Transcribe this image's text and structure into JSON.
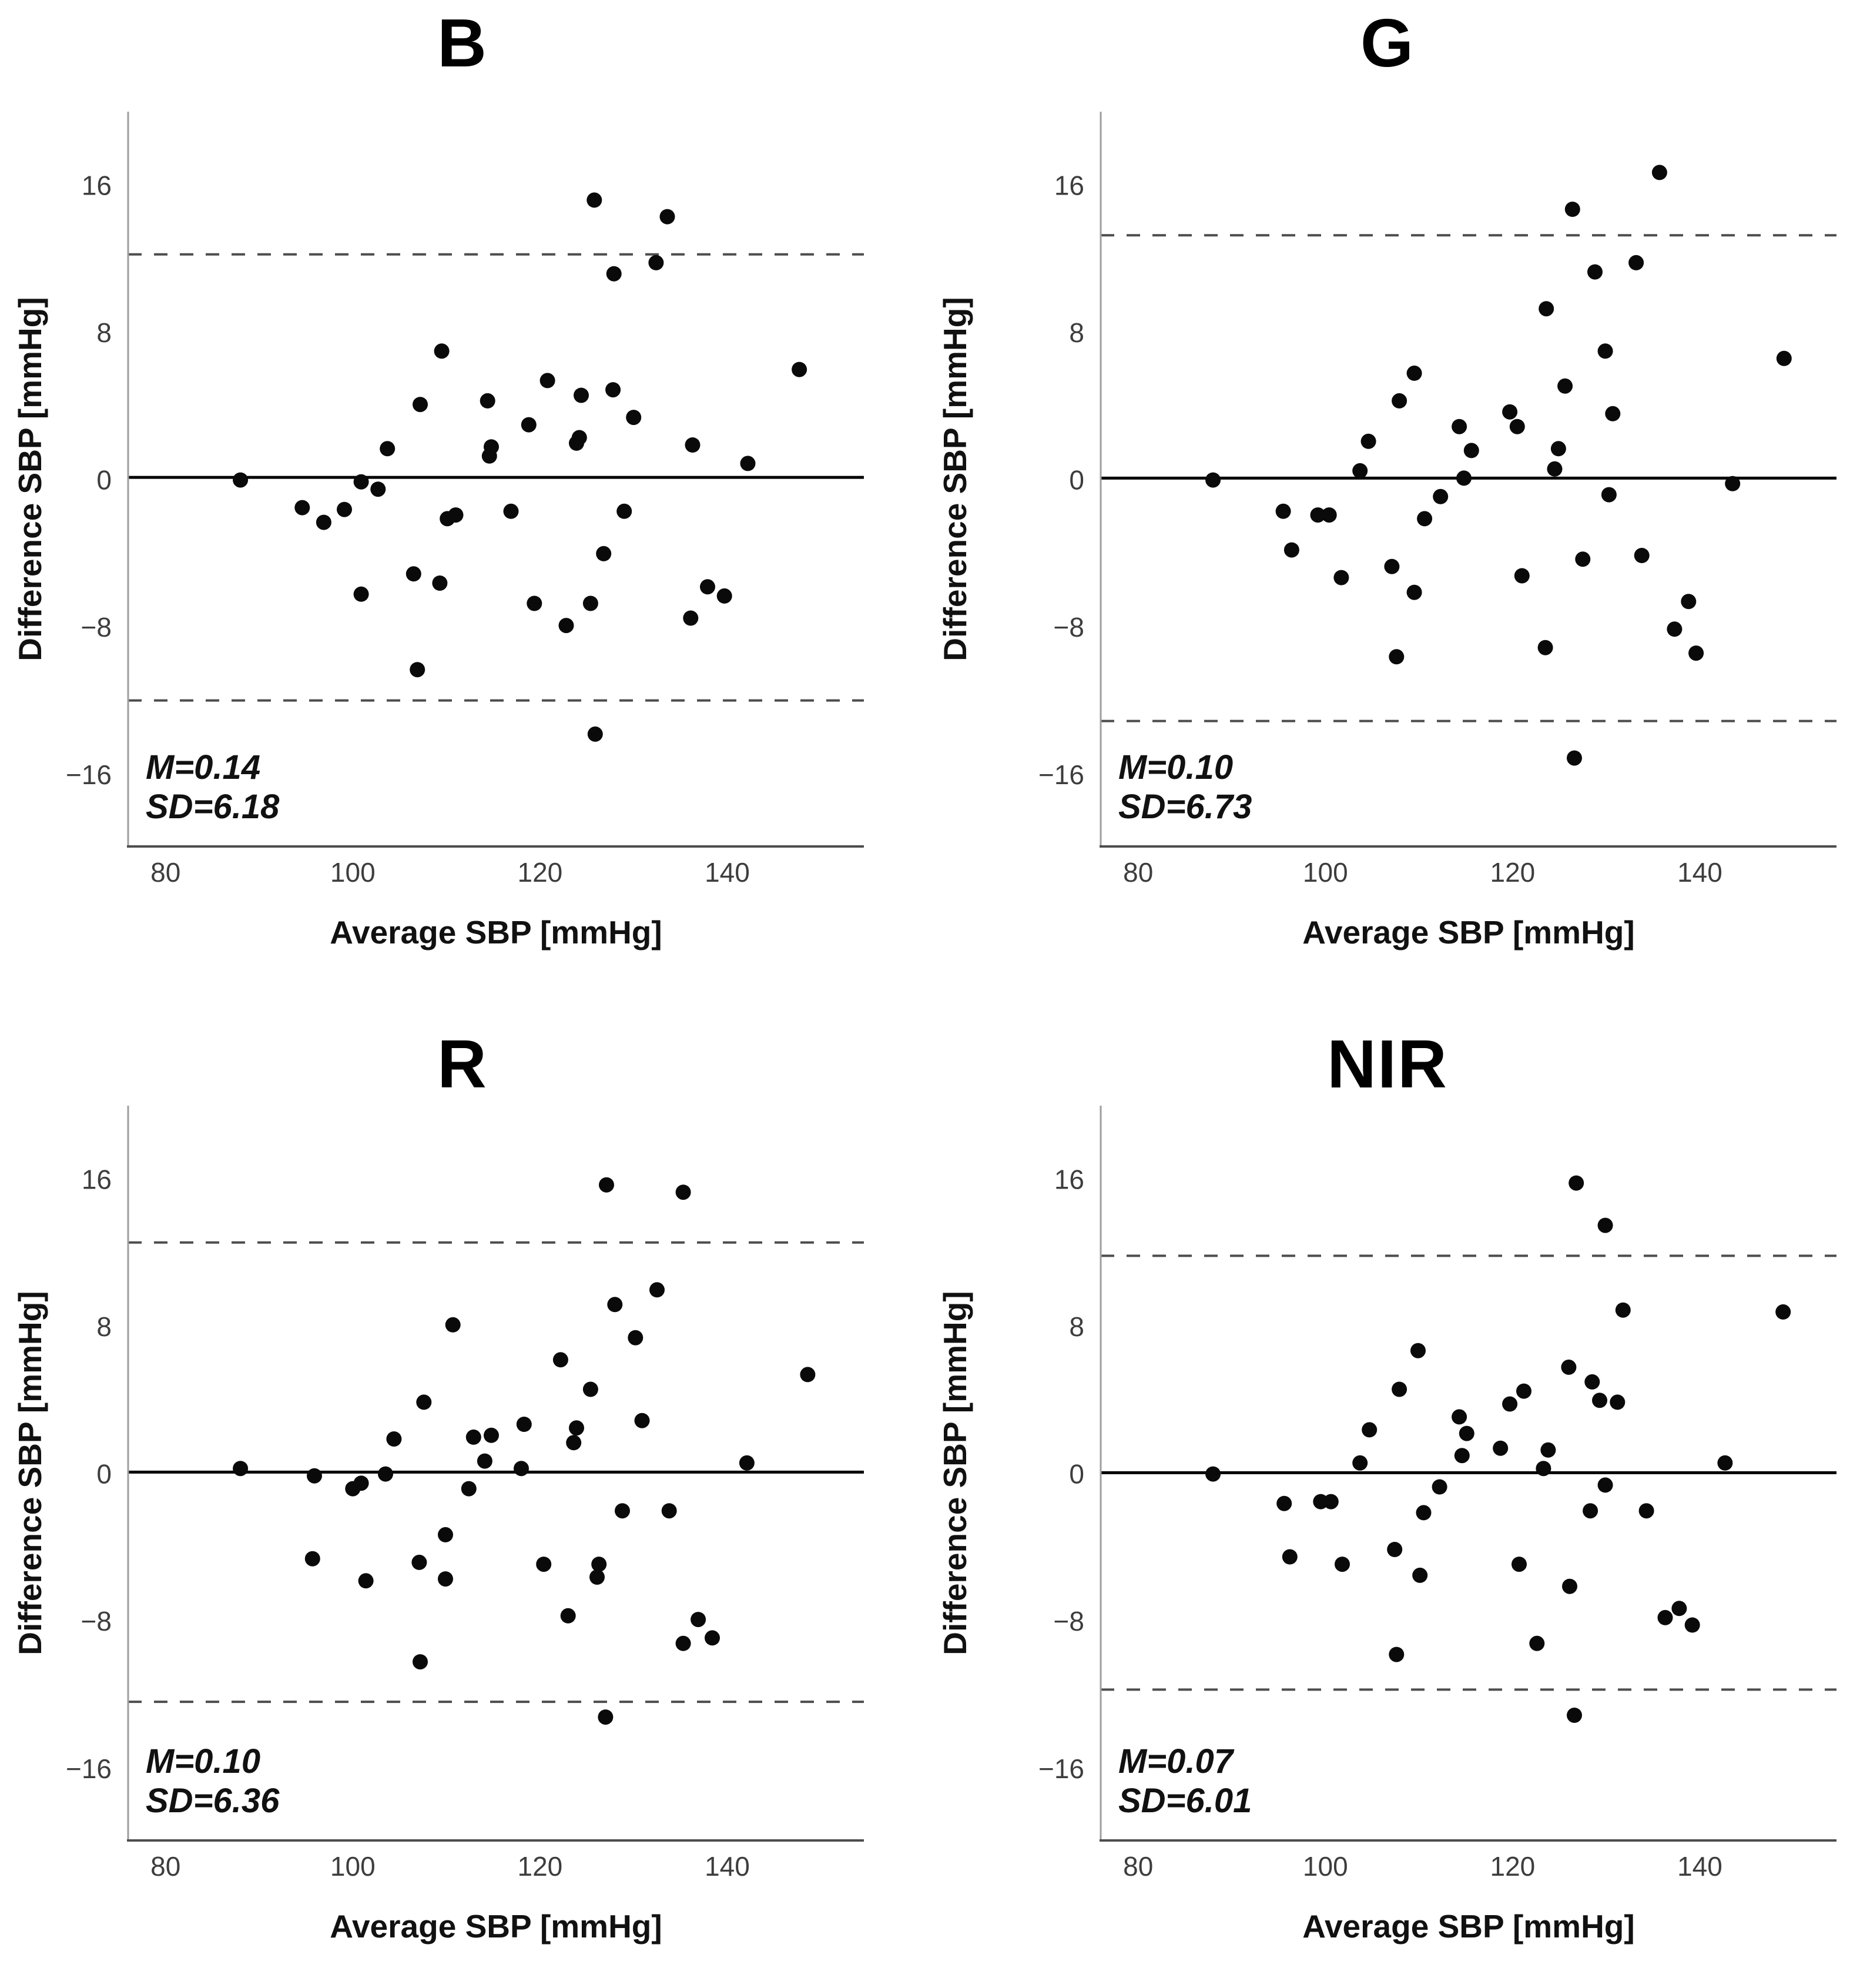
{
  "figure": {
    "background": "#ffffff",
    "point_color": "#0a0a0a",
    "mean_line_color": "#000000",
    "loa_line_color": "#4d4d4d",
    "spine_color": "#9e9e9e",
    "axis_color": "#4d4d4d",
    "tick_label_color": "#3d3d3d",
    "text_color": "#111111"
  },
  "shared": {
    "xlabel": "Average SBP [mmHg]",
    "ylabel": "Difference SBP [mmHg]",
    "x_ticks": [
      80,
      100,
      120,
      140
    ],
    "y_ticks": [
      16,
      8,
      0,
      -8,
      -16
    ],
    "xlim": [
      76.0,
      154.6
    ],
    "ylim": [
      -19.9,
      20.0
    ],
    "grid": "off",
    "legend": "none"
  },
  "chart_data": [
    {
      "type": "scatter",
      "title": "B",
      "mean": 0.14,
      "sd": 6.18,
      "upper_loa": 12.25,
      "lower_loa": -11.97,
      "annotation": {
        "m": "M=0.14",
        "sd": "SD=6.18"
      },
      "points": [
        [
          88.0,
          0.0
        ],
        [
          94.6,
          -1.5
        ],
        [
          96.9,
          -2.3
        ],
        [
          99.1,
          -1.6
        ],
        [
          100.9,
          -0.1
        ],
        [
          102.7,
          -0.5
        ],
        [
          100.9,
          -6.2
        ],
        [
          103.7,
          1.7
        ],
        [
          106.5,
          -5.1
        ],
        [
          106.9,
          -10.3
        ],
        [
          107.2,
          4.1
        ],
        [
          109.3,
          -5.6
        ],
        [
          109.5,
          7.0
        ],
        [
          110.1,
          -2.1
        ],
        [
          111.0,
          -1.9
        ],
        [
          114.4,
          4.3
        ],
        [
          114.6,
          1.3
        ],
        [
          114.8,
          1.8
        ],
        [
          116.9,
          -1.7
        ],
        [
          118.8,
          3.0
        ],
        [
          119.4,
          -6.7
        ],
        [
          120.8,
          5.4
        ],
        [
          122.8,
          -7.9
        ],
        [
          123.9,
          2.0
        ],
        [
          124.2,
          2.3
        ],
        [
          124.4,
          4.6
        ],
        [
          125.8,
          15.2
        ],
        [
          125.4,
          -6.7
        ],
        [
          125.9,
          -13.8
        ],
        [
          126.8,
          -4.0
        ],
        [
          127.8,
          4.9
        ],
        [
          127.9,
          11.2
        ],
        [
          129.0,
          -1.7
        ],
        [
          130.0,
          3.4
        ],
        [
          132.4,
          11.8
        ],
        [
          133.6,
          14.3
        ],
        [
          136.3,
          1.9
        ],
        [
          136.1,
          -7.5
        ],
        [
          137.9,
          -5.8
        ],
        [
          139.7,
          -6.3
        ],
        [
          142.2,
          0.9
        ],
        [
          147.7,
          6.0
        ]
      ]
    },
    {
      "type": "scatter",
      "title": "G",
      "mean": 0.1,
      "sd": 6.73,
      "upper_loa": 13.29,
      "lower_loa": -13.09,
      "annotation": {
        "m": "M=0.10",
        "sd": "SD=6.73"
      },
      "points": [
        [
          88.0,
          0.0
        ],
        [
          95.5,
          -1.7
        ],
        [
          96.4,
          -3.8
        ],
        [
          99.2,
          -1.9
        ],
        [
          100.4,
          -1.9
        ],
        [
          101.7,
          -5.3
        ],
        [
          103.7,
          0.5
        ],
        [
          104.6,
          2.1
        ],
        [
          107.1,
          -4.7
        ],
        [
          107.6,
          -9.6
        ],
        [
          107.9,
          4.3
        ],
        [
          109.5,
          5.8
        ],
        [
          109.5,
          -6.1
        ],
        [
          110.6,
          -2.1
        ],
        [
          112.3,
          -0.9
        ],
        [
          114.3,
          2.9
        ],
        [
          115.6,
          1.6
        ],
        [
          114.8,
          0.1
        ],
        [
          119.7,
          3.7
        ],
        [
          120.5,
          2.9
        ],
        [
          121.0,
          -5.2
        ],
        [
          123.6,
          9.3
        ],
        [
          123.5,
          -9.1
        ],
        [
          124.5,
          0.6
        ],
        [
          124.9,
          1.7
        ],
        [
          125.6,
          5.1
        ],
        [
          126.4,
          14.7
        ],
        [
          126.6,
          -15.1
        ],
        [
          127.5,
          -4.3
        ],
        [
          128.8,
          11.3
        ],
        [
          129.9,
          7.0
        ],
        [
          130.3,
          -0.8
        ],
        [
          130.7,
          3.6
        ],
        [
          133.2,
          11.8
        ],
        [
          133.8,
          -4.1
        ],
        [
          135.7,
          16.7
        ],
        [
          137.3,
          -8.1
        ],
        [
          138.8,
          -6.6
        ],
        [
          139.6,
          -9.4
        ],
        [
          143.5,
          -0.2
        ],
        [
          149.0,
          6.6
        ]
      ]
    },
    {
      "type": "scatter",
      "title": "R",
      "mean": 0.1,
      "sd": 6.36,
      "upper_loa": 12.57,
      "lower_loa": -12.37,
      "annotation": {
        "m": "M=0.10",
        "sd": "SD=6.36"
      },
      "points": [
        [
          88.0,
          0.3
        ],
        [
          95.9,
          -0.1
        ],
        [
          95.7,
          -4.6
        ],
        [
          100.0,
          -0.8
        ],
        [
          100.9,
          -0.5
        ],
        [
          101.4,
          -5.8
        ],
        [
          103.5,
          0.0
        ],
        [
          104.4,
          1.9
        ],
        [
          107.1,
          -4.8
        ],
        [
          107.2,
          -10.2
        ],
        [
          107.6,
          3.9
        ],
        [
          109.9,
          -3.3
        ],
        [
          110.7,
          8.1
        ],
        [
          109.9,
          -5.7
        ],
        [
          112.4,
          -0.8
        ],
        [
          112.9,
          2.0
        ],
        [
          114.1,
          0.7
        ],
        [
          114.8,
          2.1
        ],
        [
          118.3,
          2.7
        ],
        [
          118.0,
          0.3
        ],
        [
          120.4,
          -4.9
        ],
        [
          122.2,
          6.2
        ],
        [
          123.0,
          -7.7
        ],
        [
          123.6,
          1.7
        ],
        [
          123.9,
          2.5
        ],
        [
          125.4,
          4.6
        ],
        [
          127.1,
          15.7
        ],
        [
          127.0,
          -13.2
        ],
        [
          126.3,
          -4.9
        ],
        [
          126.1,
          -5.6
        ],
        [
          128.0,
          9.2
        ],
        [
          130.2,
          7.4
        ],
        [
          128.8,
          -2.0
        ],
        [
          130.9,
          2.9
        ],
        [
          132.5,
          10.0
        ],
        [
          135.3,
          15.3
        ],
        [
          133.8,
          -2.0
        ],
        [
          135.3,
          -9.2
        ],
        [
          136.9,
          -7.9
        ],
        [
          138.4,
          -8.9
        ],
        [
          142.1,
          0.6
        ],
        [
          148.6,
          5.4
        ]
      ]
    },
    {
      "type": "scatter",
      "title": "NIR",
      "mean": 0.07,
      "sd": 6.01,
      "upper_loa": 11.85,
      "lower_loa": -11.71,
      "annotation": {
        "m": "M=0.07",
        "sd": "SD=6.01"
      },
      "points": [
        [
          88.0,
          0.0
        ],
        [
          95.6,
          -1.6
        ],
        [
          96.2,
          -4.5
        ],
        [
          99.5,
          -1.5
        ],
        [
          100.6,
          -1.5
        ],
        [
          101.8,
          -4.9
        ],
        [
          103.7,
          0.6
        ],
        [
          104.7,
          2.4
        ],
        [
          107.4,
          -4.1
        ],
        [
          107.6,
          -9.8
        ],
        [
          107.9,
          4.6
        ],
        [
          109.9,
          6.7
        ],
        [
          110.1,
          -5.5
        ],
        [
          110.5,
          -2.1
        ],
        [
          112.2,
          -0.7
        ],
        [
          114.3,
          3.1
        ],
        [
          114.6,
          1.0
        ],
        [
          115.1,
          2.2
        ],
        [
          118.7,
          1.4
        ],
        [
          119.7,
          3.8
        ],
        [
          121.2,
          4.5
        ],
        [
          120.7,
          -4.9
        ],
        [
          122.6,
          -9.2
        ],
        [
          123.8,
          1.3
        ],
        [
          123.3,
          0.3
        ],
        [
          126.0,
          5.8
        ],
        [
          126.8,
          15.8
        ],
        [
          126.1,
          -6.1
        ],
        [
          126.6,
          -13.1
        ],
        [
          128.5,
          5.0
        ],
        [
          129.3,
          4.0
        ],
        [
          128.3,
          -2.0
        ],
        [
          129.9,
          13.5
        ],
        [
          129.9,
          -0.6
        ],
        [
          131.2,
          3.9
        ],
        [
          131.8,
          8.9
        ],
        [
          134.3,
          -2.0
        ],
        [
          136.3,
          -7.8
        ],
        [
          137.8,
          -7.3
        ],
        [
          139.2,
          -8.2
        ],
        [
          142.7,
          0.6
        ],
        [
          148.9,
          8.8
        ]
      ]
    }
  ]
}
